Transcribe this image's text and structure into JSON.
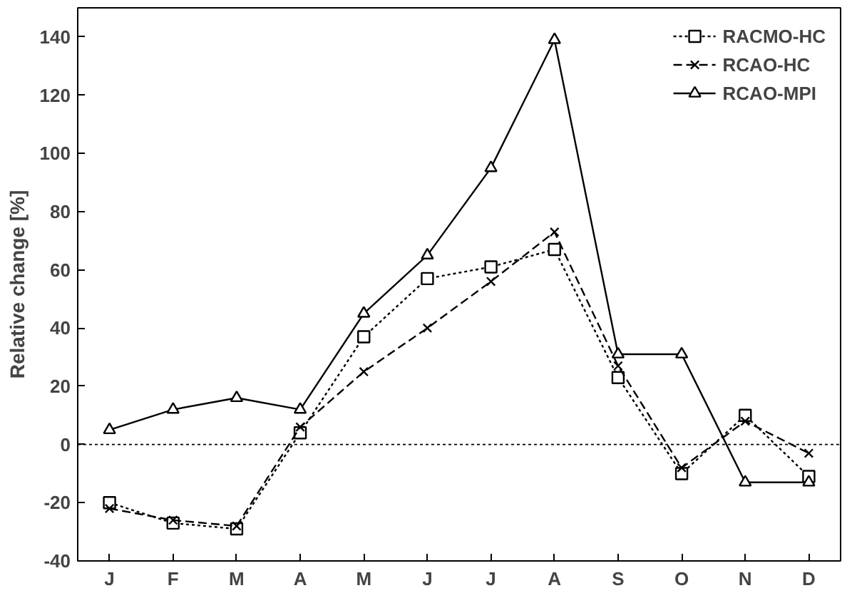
{
  "chart_data": {
    "type": "line",
    "ylabel": "Relative change [%]",
    "categories": [
      "J",
      "F",
      "M",
      "A",
      "M",
      "J",
      "J",
      "A",
      "S",
      "O",
      "N",
      "D"
    ],
    "ylim": [
      -40,
      150
    ],
    "yticks": [
      -40,
      -20,
      0,
      20,
      40,
      60,
      80,
      100,
      120,
      140
    ],
    "grid": false,
    "legend": "top right",
    "ref_lines": [
      {
        "axis": "y",
        "value": 0,
        "line_style": "dotted",
        "color": "#000000"
      }
    ],
    "series": [
      {
        "name": "RACMO-HC",
        "color": "#000000",
        "marker": "square",
        "line_style": "dotted",
        "values": [
          -20,
          -27,
          -29,
          4,
          37,
          57,
          61,
          67,
          23,
          -10,
          10,
          -11
        ]
      },
      {
        "name": "RCAO-HC",
        "color": "#000000",
        "marker": "cross",
        "line_style": "dashed",
        "values": [
          -22,
          -26,
          -28,
          6,
          25,
          40,
          56,
          73,
          27,
          -8,
          8,
          -3
        ]
      },
      {
        "name": "RCAO-MPI",
        "color": "#000000",
        "marker": "triangle",
        "line_style": "solid",
        "values": [
          5,
          12,
          16,
          12,
          45,
          65,
          95,
          139,
          31,
          31,
          -13,
          -13
        ]
      }
    ]
  }
}
